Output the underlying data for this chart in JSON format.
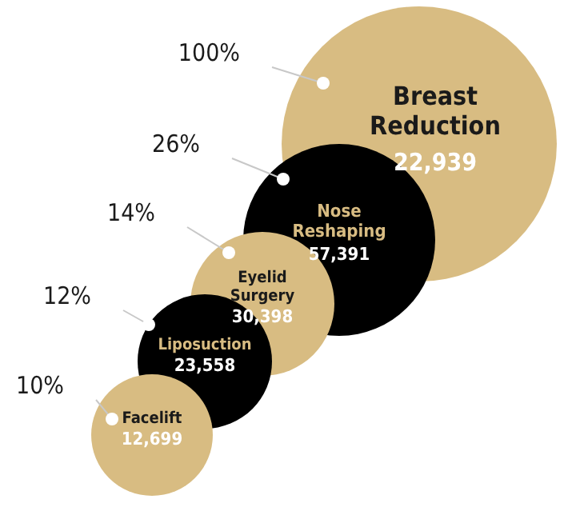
{
  "chart_data": {
    "type": "other",
    "categories": [
      "Breast Reduction",
      "Nose Reshaping",
      "Eyelid Surgery",
      "Liposuction",
      "Facelift"
    ],
    "values": [
      22939,
      57391,
      30398,
      23558,
      12699
    ],
    "value_labels": [
      "22,939",
      "57,391",
      "30,398",
      "23,558",
      "12,699"
    ],
    "colors": [
      "#d8bc82",
      "#000000",
      "#d8bc82",
      "#000000",
      "#d8bc82"
    ],
    "annotations": [
      {
        "text": "100%",
        "x": "Breast Reduction"
      },
      {
        "text": "26%",
        "x": "Nose Reshaping"
      },
      {
        "text": "14%",
        "x": "Eyelid Surgery"
      },
      {
        "text": "12%",
        "x": "Liposuction"
      },
      {
        "text": "10%",
        "x": "Facelift"
      }
    ]
  }
}
